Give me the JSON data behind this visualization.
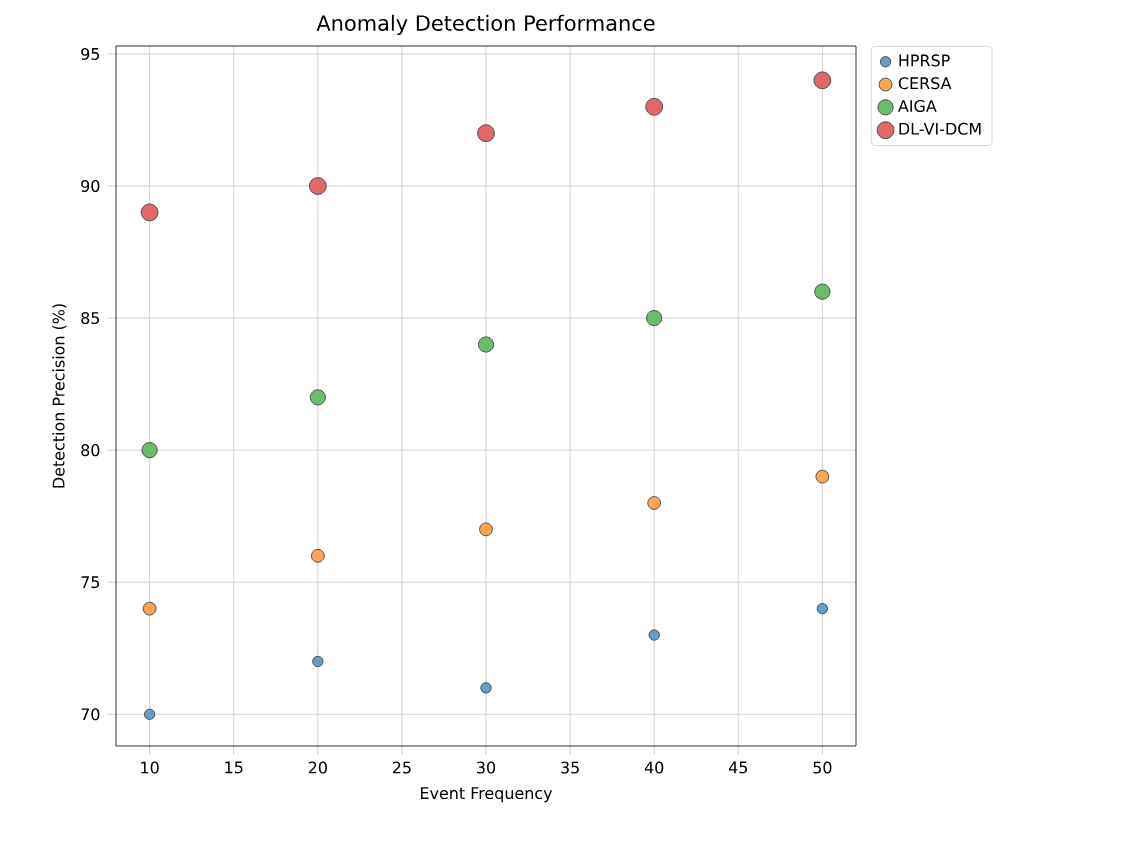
{
  "chart_data": {
    "type": "scatter",
    "title": "Anomaly Detection Performance",
    "xlabel": "Event Frequency",
    "ylabel": "Detection Precision (%)",
    "x": [
      10,
      20,
      30,
      40,
      50
    ],
    "series": [
      {
        "name": "HPRSP",
        "color": "#629fca",
        "values": [
          70,
          72,
          71,
          73,
          74
        ]
      },
      {
        "name": "CERSA",
        "color": "#ffa556",
        "values": [
          74,
          76,
          77,
          78,
          79
        ]
      },
      {
        "name": "AIGA",
        "color": "#6bbc6b",
        "values": [
          80,
          82,
          84,
          85,
          86
        ]
      },
      {
        "name": "DL-VI-DCM",
        "color": "#e26768",
        "values": [
          89,
          90,
          92,
          93,
          94
        ]
      }
    ],
    "xlim": [
      8,
      52
    ],
    "xticks": [
      10,
      15,
      20,
      25,
      30,
      35,
      40,
      45,
      50
    ],
    "ylim": [
      68.8,
      95.3
    ],
    "yticks": [
      70,
      75,
      80,
      85,
      90,
      95
    ],
    "grid": true,
    "legend": "top right"
  }
}
